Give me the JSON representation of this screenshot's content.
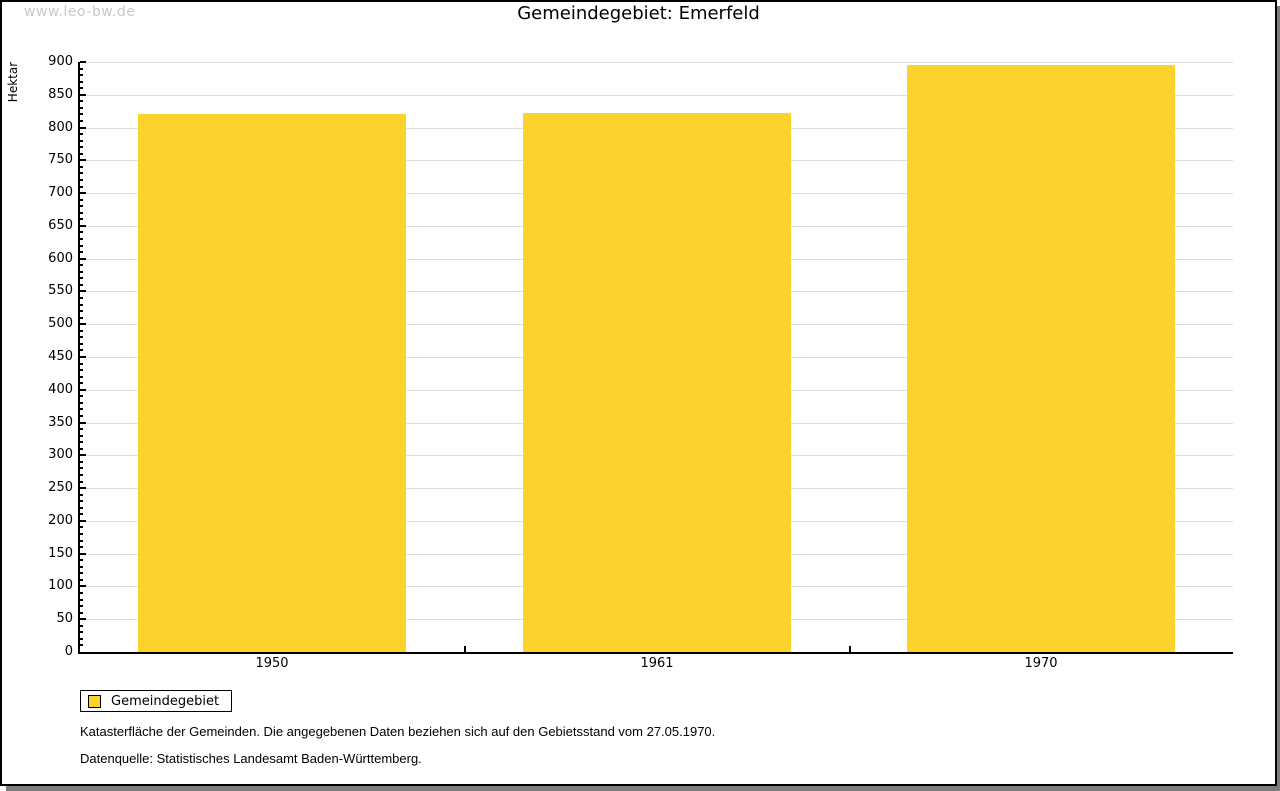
{
  "watermark": "www.leo-bw.de",
  "title": "Gemeindegebiet: Emerfeld",
  "chart_data": {
    "type": "bar",
    "title": "Gemeindegebiet: Emerfeld",
    "categories": [
      "1950",
      "1961",
      "1970"
    ],
    "series": [
      {
        "name": "Gemeindegebiet",
        "values": [
          820,
          822,
          895
        ]
      }
    ],
    "xlabel": "",
    "ylabel": "Hektar",
    "ylim": [
      0,
      900
    ],
    "yticks": [
      0,
      50,
      100,
      150,
      200,
      250,
      300,
      350,
      400,
      450,
      500,
      550,
      600,
      650,
      700,
      750,
      800,
      850,
      900
    ],
    "minor_tick_step": 10,
    "bar_color": "#FCD32D",
    "grid": "horizontal-major-only",
    "gridline_color": "#dedede",
    "legend_position": "below-plot-left"
  },
  "legend": {
    "label": "Gemeindegebiet"
  },
  "footnotes": {
    "line1": "Katasterfläche der Gemeinden. Die angegebenen Daten beziehen sich auf den Gebietsstand vom 27.05.1970.",
    "line2": "Datenquelle: Statistisches Landesamt Baden-Württemberg."
  }
}
